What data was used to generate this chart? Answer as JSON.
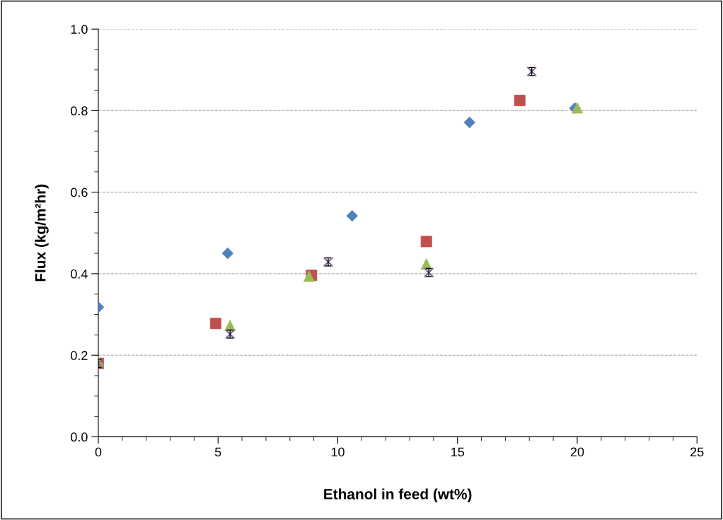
{
  "chart_data": {
    "type": "scatter",
    "xlabel": "Ethanol in feed (wt%)",
    "ylabel": "Flux (kg/m²hr)",
    "xlim": [
      0,
      25
    ],
    "xticks": [
      0,
      5,
      10,
      15,
      20,
      25
    ],
    "ylim": [
      0,
      1.0
    ],
    "yticks": [
      {
        "value": 0,
        "label": "0.0"
      },
      {
        "value": 0.2,
        "label": "0.2"
      },
      {
        "value": 0.4,
        "label": "0.4"
      },
      {
        "value": 0.6,
        "label": "0.6"
      },
      {
        "value": 0.8,
        "label": "0.8"
      },
      {
        "value": 1.0,
        "label": "1.0"
      }
    ],
    "grid": "y",
    "series": [
      {
        "color": "#4f81bd",
        "marker": "diamond",
        "x": [
          0,
          5.4,
          10.6,
          15.5,
          19.9
        ],
        "values": [
          0.318,
          0.45,
          0.542,
          0.771,
          0.806
        ]
      },
      {
        "color": "#c0504d",
        "marker": "square",
        "x": [
          0,
          4.9,
          8.9,
          13.7,
          17.6
        ],
        "values": [
          0.18,
          0.278,
          0.396,
          0.479,
          0.825
        ]
      },
      {
        "color": "#9bbb59",
        "marker": "triangle",
        "x": [
          0,
          5.5,
          8.8,
          13.7,
          20.0
        ],
        "values": [
          0.185,
          0.273,
          0.394,
          0.424,
          0.807
        ]
      },
      {
        "color": "#8064a2",
        "marker": "cross",
        "x": [
          0,
          5.5,
          9.6,
          13.8,
          18.1
        ],
        "values": [
          0.18,
          0.252,
          0.429,
          0.403,
          0.896
        ],
        "errors": [
          0.01,
          0.01,
          0.01,
          0.01,
          0.01
        ]
      }
    ]
  }
}
